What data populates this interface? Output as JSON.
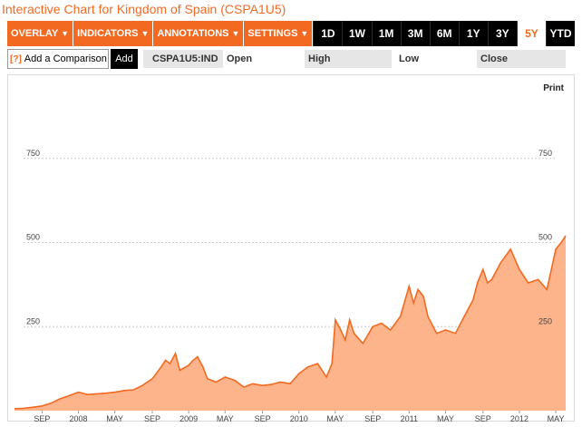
{
  "title": "Interactive Chart for Kingdom of Spain (CSPA1U5)",
  "toolbar": {
    "menus": [
      {
        "label": "OVERLAY",
        "caret": "▼"
      },
      {
        "label": "INDICATORS",
        "caret": "▼"
      },
      {
        "label": "ANNOTATIONS",
        "caret": "▼"
      },
      {
        "label": "SETTINGS",
        "caret": "▼"
      }
    ],
    "ranges": [
      "1D",
      "1W",
      "1M",
      "3M",
      "6M",
      "1Y",
      "3Y",
      "5Y",
      "YTD"
    ],
    "active_range": "5Y"
  },
  "compare": {
    "help": "[?]",
    "label": "Add a Comparison",
    "add_label": "Add"
  },
  "quote": {
    "symbol": "CSPA1U5:IND",
    "open_label": "Open",
    "high_label": "High",
    "low_label": "Low",
    "close_label": "Close"
  },
  "print_label": "Print",
  "colors": {
    "accent": "#f26a21",
    "area_fill": "#fdb48a",
    "line": "#f26a21"
  },
  "chart_data": {
    "type": "area",
    "title": "",
    "xlabel": "",
    "ylabel": "",
    "ylim": [
      0,
      1000
    ],
    "yticks": [
      250,
      500,
      750
    ],
    "xlim": [
      2007.42,
      2012.42
    ],
    "xticks": [
      {
        "label": "SEP",
        "x": 2007.67
      },
      {
        "label": "2008",
        "x": 2008.0
      },
      {
        "label": "MAY",
        "x": 2008.33
      },
      {
        "label": "SEP",
        "x": 2008.67
      },
      {
        "label": "2009",
        "x": 2009.0
      },
      {
        "label": "MAY",
        "x": 2009.33
      },
      {
        "label": "SEP",
        "x": 2009.67
      },
      {
        "label": "2010",
        "x": 2010.0
      },
      {
        "label": "MAY",
        "x": 2010.33
      },
      {
        "label": "SEP",
        "x": 2010.67
      },
      {
        "label": "2011",
        "x": 2011.0
      },
      {
        "label": "MAY",
        "x": 2011.33
      },
      {
        "label": "SEP",
        "x": 2011.67
      },
      {
        "label": "2012",
        "x": 2012.0
      },
      {
        "label": "MAY",
        "x": 2012.33
      }
    ],
    "x": [
      2007.42,
      2007.5,
      2007.58,
      2007.67,
      2007.75,
      2007.83,
      2007.92,
      2008.0,
      2008.08,
      2008.17,
      2008.25,
      2008.33,
      2008.42,
      2008.5,
      2008.58,
      2008.67,
      2008.75,
      2008.79,
      2008.83,
      2008.88,
      2008.92,
      2009.0,
      2009.04,
      2009.08,
      2009.13,
      2009.17,
      2009.25,
      2009.33,
      2009.42,
      2009.5,
      2009.58,
      2009.67,
      2009.75,
      2009.83,
      2009.92,
      2010.0,
      2010.08,
      2010.17,
      2010.25,
      2010.3,
      2010.33,
      2010.38,
      2010.42,
      2010.46,
      2010.5,
      2010.58,
      2010.67,
      2010.75,
      2010.83,
      2010.92,
      2011.0,
      2011.04,
      2011.08,
      2011.13,
      2011.17,
      2011.25,
      2011.33,
      2011.42,
      2011.5,
      2011.58,
      2011.62,
      2011.67,
      2011.71,
      2011.75,
      2011.83,
      2011.92,
      2012.0,
      2012.08,
      2012.17,
      2012.25,
      2012.29,
      2012.33,
      2012.38,
      2012.42
    ],
    "values": [
      6,
      7,
      10,
      14,
      22,
      35,
      45,
      55,
      48,
      50,
      52,
      55,
      60,
      62,
      75,
      95,
      130,
      150,
      140,
      170,
      120,
      135,
      150,
      160,
      130,
      95,
      85,
      100,
      90,
      70,
      80,
      75,
      78,
      85,
      80,
      110,
      130,
      140,
      100,
      140,
      270,
      240,
      210,
      270,
      230,
      200,
      250,
      260,
      240,
      280,
      370,
      320,
      360,
      340,
      280,
      230,
      240,
      230,
      280,
      330,
      380,
      420,
      380,
      390,
      440,
      480,
      420,
      380,
      390,
      360,
      420,
      480,
      500,
      520
    ]
  }
}
